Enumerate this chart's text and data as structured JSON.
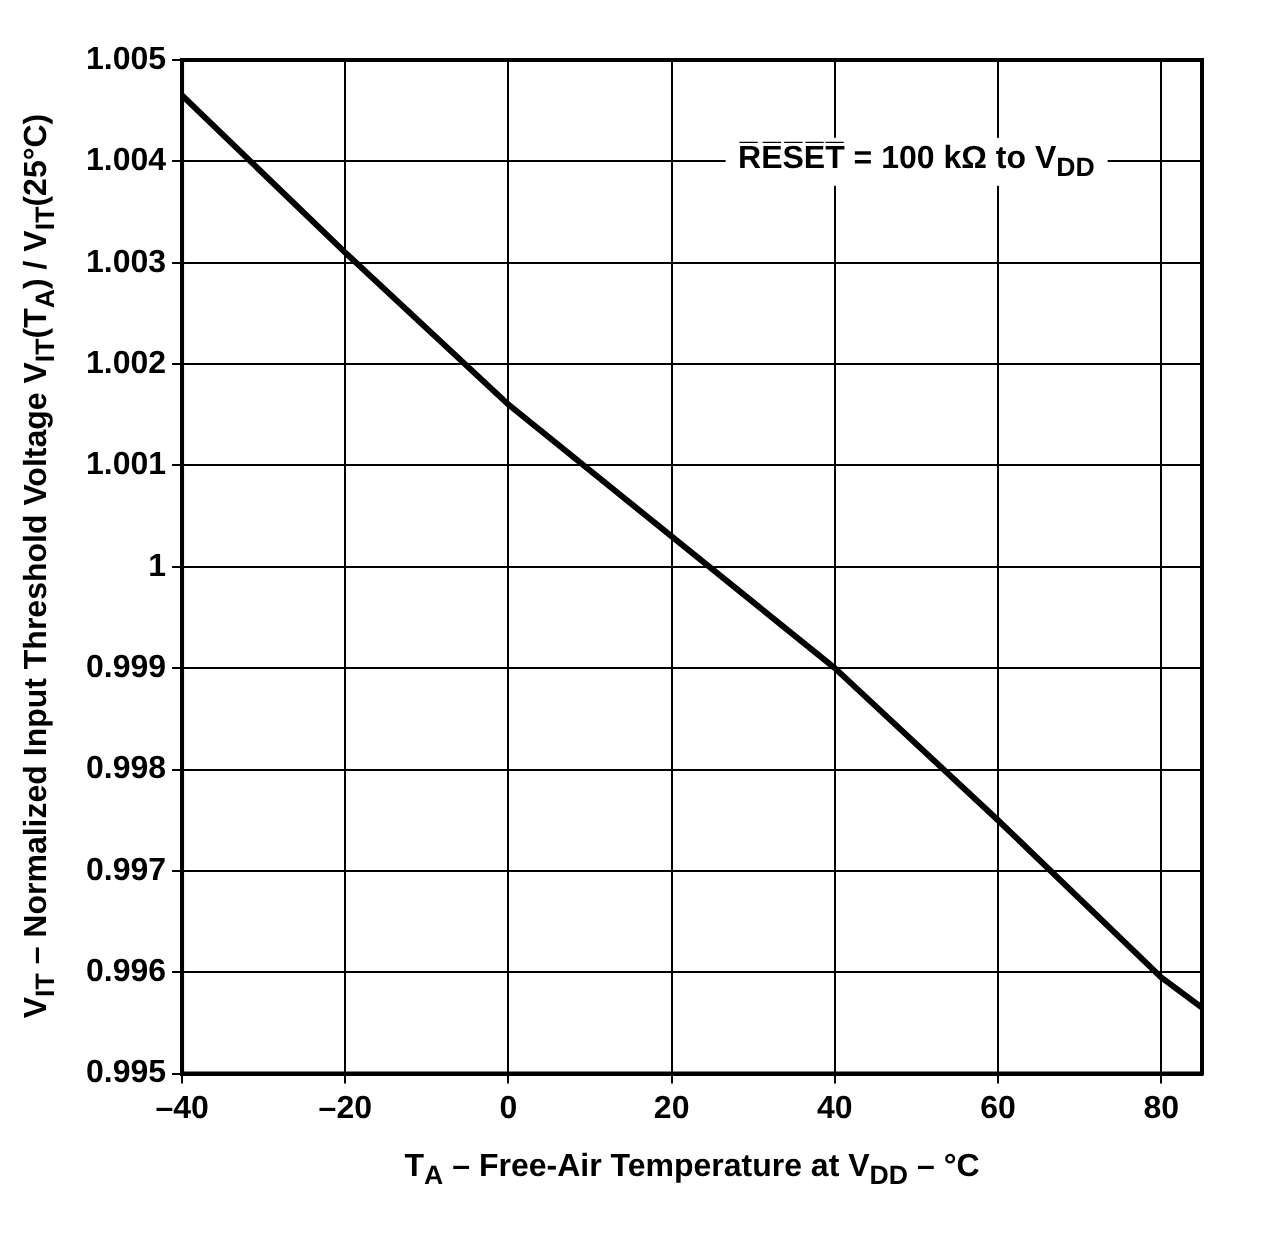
{
  "chart_data": {
    "type": "line",
    "xlabel": "T$_{A}$ – Free-Air Temperature at V$_{DD}$ – °C",
    "ylabel": "V$_{IT}$ – Normalized Input Threshold Voltage V$_{IT}$(T$_{A}$) / V$_{IT}$(25°C)",
    "annotations": [
      "R̅E̅S̅E̅T̅ = 100 kΩ to V$_{DD}$"
    ],
    "x": [
      -40,
      -20,
      0,
      20,
      40,
      60,
      80,
      85
    ],
    "series": [
      {
        "color": "#000000",
        "values": [
          1.00465,
          1.0031,
          1.0016,
          1.0003,
          0.999,
          0.9975,
          0.99595,
          0.99565
        ]
      }
    ],
    "xlim": [
      -40,
      85
    ],
    "xticks": [
      {
        "value": -40,
        "label": "–40"
      },
      {
        "value": -20,
        "label": "–20"
      },
      0,
      20,
      40,
      60,
      80
    ],
    "ylim": [
      0.995,
      1.005
    ],
    "yticks": [
      0.995,
      0.996,
      0.997,
      0.998,
      0.999,
      1,
      1.001,
      1.002,
      1.003,
      1.004,
      1.005
    ],
    "grid": true,
    "legend": false,
    "marker": "none",
    "line_style": "solid"
  }
}
